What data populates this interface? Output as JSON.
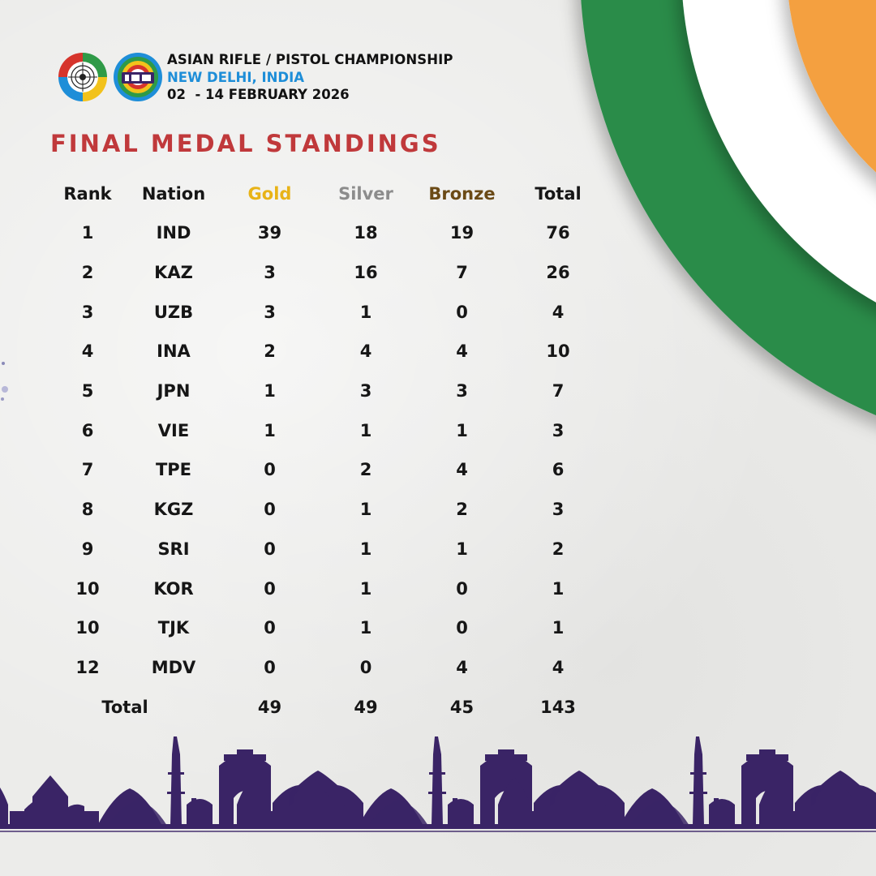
{
  "header": {
    "title": "ASIAN RIFLE / PISTOL CHAMPIONSHIP",
    "location": "NEW DELHI, INDIA",
    "dates": "02  - 14 FEBRUARY 2026"
  },
  "page_title": "FINAL MEDAL STANDINGS",
  "table": {
    "columns": [
      "Rank",
      "Nation",
      "Gold",
      "Silver",
      "Bronze",
      "Total"
    ],
    "rows": [
      [
        "1",
        "IND",
        "39",
        "18",
        "19",
        "76"
      ],
      [
        "2",
        "KAZ",
        "3",
        "16",
        "7",
        "26"
      ],
      [
        "3",
        "UZB",
        "3",
        "1",
        "0",
        "4"
      ],
      [
        "4",
        "INA",
        "2",
        "4",
        "4",
        "10"
      ],
      [
        "5",
        "JPN",
        "1",
        "3",
        "3",
        "7"
      ],
      [
        "6",
        "VIE",
        "1",
        "1",
        "1",
        "3"
      ],
      [
        "7",
        "TPE",
        "0",
        "2",
        "4",
        "6"
      ],
      [
        "8",
        "KGZ",
        "0",
        "1",
        "2",
        "3"
      ],
      [
        "9",
        "SRI",
        "0",
        "1",
        "1",
        "2"
      ],
      [
        "10",
        "KOR",
        "0",
        "1",
        "0",
        "1"
      ],
      [
        "10",
        "TJK",
        "0",
        "1",
        "0",
        "1"
      ],
      [
        "12",
        "MDV",
        "0",
        "0",
        "4",
        "4"
      ]
    ],
    "totals": {
      "label": "Total",
      "gold": "49",
      "silver": "49",
      "bronze": "45",
      "total": "143"
    }
  },
  "colors": {
    "title_red": "#c0393b",
    "gold": "#e8b317",
    "silver": "#8c8c8c",
    "bronze": "#6b4a16",
    "location_blue": "#1e8ed8",
    "flag_saffron": "#f4a03f",
    "flag_white": "#ffffff",
    "flag_green": "#2c8c4a",
    "skyline_purple": "#3a2466"
  }
}
